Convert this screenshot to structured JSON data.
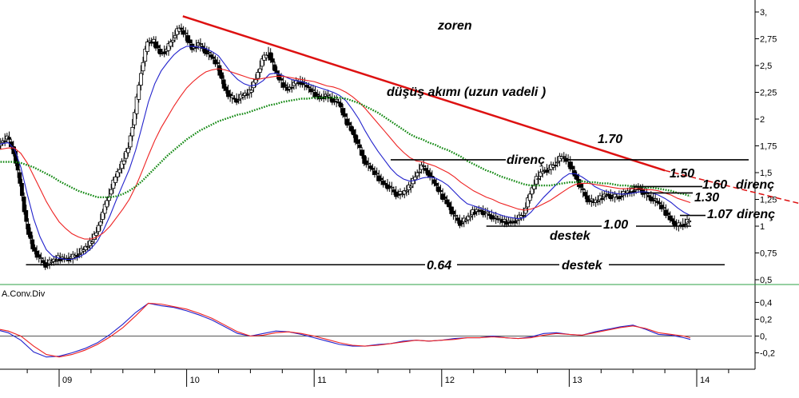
{
  "chart_data": [
    {
      "type": "line",
      "title": "zoren",
      "subtype": "candlestick",
      "x_ticks": [
        "09",
        "10",
        "11",
        "12",
        "13",
        "14"
      ],
      "y_ticks": [
        "3,",
        "2,75",
        "2,5",
        "2,25",
        "2",
        "1,75",
        "1,5",
        "1,25",
        "1",
        "0,75",
        "0,5"
      ],
      "ylim": [
        0.5,
        3.0
      ],
      "grid": false,
      "series": [
        {
          "kind": "close",
          "color": "#000000",
          "x": [
            2008.5,
            2008.55,
            2008.6,
            2008.65,
            2008.7,
            2008.75,
            2008.8,
            2008.85,
            2008.9,
            2008.95,
            2009.0,
            2009.05,
            2009.1,
            2009.15,
            2009.2,
            2009.25,
            2009.3,
            2009.35,
            2009.4,
            2009.45,
            2009.5,
            2009.55,
            2009.6,
            2009.65,
            2009.7,
            2009.75,
            2009.8,
            2009.85,
            2009.9,
            2009.95,
            2010.0,
            2010.05,
            2010.1,
            2010.15,
            2010.2,
            2010.25,
            2010.3,
            2010.35,
            2010.4,
            2010.45,
            2010.5,
            2010.55,
            2010.6,
            2010.65,
            2010.7,
            2010.75,
            2010.8,
            2010.85,
            2010.9,
            2010.95,
            2011.0,
            2011.05,
            2011.1,
            2011.15,
            2011.2,
            2011.25,
            2011.3,
            2011.35,
            2011.4,
            2011.45,
            2011.5,
            2011.55,
            2011.6,
            2011.65,
            2011.7,
            2011.75,
            2011.8,
            2011.85,
            2011.9,
            2011.95,
            2012.0,
            2012.05,
            2012.1,
            2012.15,
            2012.2,
            2012.25,
            2012.3,
            2012.35,
            2012.4,
            2012.45,
            2012.5,
            2012.55,
            2012.6,
            2012.65,
            2012.7,
            2012.75,
            2012.8,
            2012.85,
            2012.9,
            2012.95,
            2013.0,
            2013.05,
            2013.1,
            2013.15,
            2013.2,
            2013.25,
            2013.3,
            2013.35,
            2013.4,
            2013.45,
            2013.5,
            2013.55,
            2013.6,
            2013.65,
            2013.7,
            2013.75,
            2013.8,
            2013.85,
            2013.9,
            2013.95
          ],
          "values": [
            1.7,
            1.78,
            1.83,
            1.7,
            1.4,
            1.02,
            0.8,
            0.7,
            0.64,
            0.67,
            0.7,
            0.7,
            0.7,
            0.74,
            0.78,
            0.84,
            0.95,
            1.12,
            1.3,
            1.46,
            1.58,
            1.74,
            2.05,
            2.45,
            2.72,
            2.72,
            2.62,
            2.64,
            2.76,
            2.85,
            2.78,
            2.66,
            2.7,
            2.64,
            2.58,
            2.5,
            2.3,
            2.2,
            2.18,
            2.22,
            2.25,
            2.38,
            2.55,
            2.62,
            2.45,
            2.34,
            2.28,
            2.33,
            2.35,
            2.3,
            2.25,
            2.2,
            2.22,
            2.18,
            2.15,
            2.0,
            1.9,
            1.76,
            1.61,
            1.54,
            1.47,
            1.4,
            1.36,
            1.3,
            1.3,
            1.36,
            1.47,
            1.56,
            1.5,
            1.4,
            1.3,
            1.22,
            1.1,
            1.03,
            1.06,
            1.13,
            1.15,
            1.12,
            1.09,
            1.06,
            1.04,
            1.04,
            1.06,
            1.12,
            1.3,
            1.44,
            1.52,
            1.53,
            1.59,
            1.65,
            1.6,
            1.48,
            1.35,
            1.25,
            1.22,
            1.26,
            1.3,
            1.27,
            1.28,
            1.31,
            1.33,
            1.36,
            1.3,
            1.26,
            1.22,
            1.15,
            1.07,
            1.0,
            1.02,
            1.05
          ]
        },
        {
          "kind": "fast moving average",
          "color": "#2222cc",
          "values": [
            1.75,
            1.77,
            1.78,
            1.72,
            1.55,
            1.3,
            1.07,
            0.9,
            0.78,
            0.72,
            0.7,
            0.69,
            0.69,
            0.71,
            0.74,
            0.79,
            0.86,
            0.97,
            1.1,
            1.25,
            1.39,
            1.53,
            1.71,
            1.93,
            2.16,
            2.33,
            2.45,
            2.53,
            2.6,
            2.65,
            2.68,
            2.68,
            2.67,
            2.66,
            2.63,
            2.59,
            2.51,
            2.43,
            2.37,
            2.33,
            2.31,
            2.32,
            2.36,
            2.42,
            2.43,
            2.41,
            2.38,
            2.36,
            2.35,
            2.33,
            2.31,
            2.29,
            2.27,
            2.25,
            2.22,
            2.17,
            2.09,
            2.0,
            1.89,
            1.79,
            1.7,
            1.62,
            1.54,
            1.48,
            1.44,
            1.42,
            1.43,
            1.45,
            1.46,
            1.45,
            1.42,
            1.38,
            1.32,
            1.26,
            1.21,
            1.19,
            1.17,
            1.15,
            1.13,
            1.11,
            1.09,
            1.08,
            1.07,
            1.08,
            1.13,
            1.2,
            1.27,
            1.33,
            1.39,
            1.45,
            1.49,
            1.49,
            1.46,
            1.42,
            1.37,
            1.34,
            1.32,
            1.31,
            1.3,
            1.3,
            1.31,
            1.32,
            1.32,
            1.31,
            1.29,
            1.26,
            1.22,
            1.17,
            1.13,
            1.1
          ]
        },
        {
          "kind": "medium moving average",
          "color": "#ee2222",
          "values": [
            1.72,
            1.72,
            1.73,
            1.73,
            1.68,
            1.59,
            1.47,
            1.35,
            1.23,
            1.13,
            1.04,
            0.98,
            0.93,
            0.9,
            0.88,
            0.88,
            0.9,
            0.94,
            1.0,
            1.08,
            1.16,
            1.25,
            1.37,
            1.51,
            1.66,
            1.8,
            1.92,
            2.02,
            2.12,
            2.21,
            2.29,
            2.35,
            2.4,
            2.44,
            2.46,
            2.47,
            2.46,
            2.44,
            2.42,
            2.4,
            2.38,
            2.37,
            2.38,
            2.39,
            2.4,
            2.4,
            2.39,
            2.38,
            2.37,
            2.36,
            2.35,
            2.33,
            2.31,
            2.3,
            2.28,
            2.25,
            2.21,
            2.16,
            2.1,
            2.03,
            1.96,
            1.89,
            1.82,
            1.75,
            1.69,
            1.64,
            1.61,
            1.6,
            1.58,
            1.56,
            1.53,
            1.5,
            1.46,
            1.41,
            1.37,
            1.33,
            1.3,
            1.27,
            1.25,
            1.22,
            1.2,
            1.18,
            1.16,
            1.15,
            1.16,
            1.18,
            1.21,
            1.24,
            1.28,
            1.32,
            1.36,
            1.39,
            1.4,
            1.4,
            1.39,
            1.38,
            1.37,
            1.36,
            1.35,
            1.35,
            1.35,
            1.35,
            1.34,
            1.34,
            1.33,
            1.31,
            1.29,
            1.26,
            1.24,
            1.22
          ]
        },
        {
          "kind": "slow moving average",
          "color": "#118811",
          "values": [
            1.6,
            1.6,
            1.6,
            1.6,
            1.59,
            1.57,
            1.55,
            1.52,
            1.49,
            1.46,
            1.42,
            1.39,
            1.36,
            1.33,
            1.31,
            1.29,
            1.27,
            1.27,
            1.27,
            1.28,
            1.3,
            1.33,
            1.37,
            1.42,
            1.48,
            1.54,
            1.6,
            1.66,
            1.71,
            1.76,
            1.81,
            1.85,
            1.89,
            1.92,
            1.95,
            1.98,
            2.0,
            2.02,
            2.04,
            2.05,
            2.07,
            2.09,
            2.11,
            2.13,
            2.14,
            2.16,
            2.17,
            2.18,
            2.19,
            2.19,
            2.2,
            2.2,
            2.2,
            2.2,
            2.2,
            2.19,
            2.17,
            2.15,
            2.12,
            2.09,
            2.06,
            2.02,
            1.98,
            1.94,
            1.9,
            1.86,
            1.83,
            1.81,
            1.78,
            1.76,
            1.73,
            1.71,
            1.68,
            1.65,
            1.61,
            1.58,
            1.55,
            1.52,
            1.5,
            1.47,
            1.45,
            1.43,
            1.41,
            1.39,
            1.38,
            1.38,
            1.38,
            1.38,
            1.39,
            1.4,
            1.41,
            1.41,
            1.42,
            1.41,
            1.41,
            1.4,
            1.4,
            1.39,
            1.38,
            1.38,
            1.37,
            1.37,
            1.36,
            1.36,
            1.35,
            1.34,
            1.33,
            1.31,
            1.3,
            1.28
          ]
        }
      ],
      "annotations": [
        {
          "text": "düşüş akımı (uzun vadeli )",
          "kind": "trendline",
          "color": "#dd1111",
          "from": [
            2009.97,
            2.96
          ],
          "to": [
            2013.75,
            1.52
          ],
          "extension_to": [
            2014.7,
            1.36
          ]
        },
        {
          "text": "direnç",
          "kind": "horizontal",
          "value": 1.62,
          "from": 2011.6,
          "to": 2014.43
        },
        {
          "text": "1.70",
          "value": 1.7
        },
        {
          "text": "1.50",
          "value": 1.5
        },
        {
          "text": "1.60",
          "value": 1.6
        },
        {
          "text": "direnç",
          "value": 1.6
        },
        {
          "text": "1.30",
          "value": 1.3
        },
        {
          "text": "1.07",
          "value": 1.07
        },
        {
          "text": "direnç",
          "value": 1.07
        },
        {
          "text": "1.00",
          "kind": "horizontal",
          "value": 1.0,
          "from": 2012.35,
          "to": 2013.93
        },
        {
          "text": "destek",
          "value": 1.0
        },
        {
          "text": "0.64",
          "kind": "horizontal",
          "value": 0.64,
          "from": 2008.74,
          "to": 2014.43
        },
        {
          "text": "destek",
          "value": 0.64
        }
      ]
    },
    {
      "type": "line",
      "title": "A.Conv.Div",
      "x_ticks": [
        "09",
        "10",
        "11",
        "12",
        "13",
        "14"
      ],
      "y_ticks": [
        "0,4",
        "0,2",
        "0,",
        "-0,2"
      ],
      "ylim": [
        -0.3,
        0.48
      ],
      "grid": false,
      "zero_line": 0,
      "series": [
        {
          "kind": "macd",
          "color": "#2222cc",
          "x": [
            2008.5,
            2008.6,
            2008.7,
            2008.8,
            2008.9,
            2009.0,
            2009.1,
            2009.2,
            2009.3,
            2009.4,
            2009.5,
            2009.6,
            2009.7,
            2009.8,
            2009.9,
            2010.0,
            2010.1,
            2010.2,
            2010.3,
            2010.4,
            2010.5,
            2010.6,
            2010.7,
            2010.8,
            2010.9,
            2011.0,
            2011.1,
            2011.2,
            2011.3,
            2011.4,
            2011.5,
            2011.6,
            2011.7,
            2011.8,
            2011.9,
            2012.0,
            2012.1,
            2012.2,
            2012.3,
            2012.4,
            2012.5,
            2012.6,
            2012.7,
            2012.8,
            2012.9,
            2013.0,
            2013.1,
            2013.2,
            2013.3,
            2013.4,
            2013.5,
            2013.6,
            2013.7,
            2013.8,
            2013.9,
            2013.95
          ],
          "values": [
            0.08,
            0.04,
            -0.05,
            -0.19,
            -0.25,
            -0.24,
            -0.2,
            -0.15,
            -0.08,
            0.02,
            0.14,
            0.28,
            0.39,
            0.36,
            0.34,
            0.3,
            0.25,
            0.19,
            0.11,
            0.03,
            0.0,
            0.03,
            0.06,
            0.05,
            0.02,
            -0.02,
            -0.06,
            -0.1,
            -0.12,
            -0.12,
            -0.1,
            -0.09,
            -0.06,
            -0.05,
            -0.06,
            -0.05,
            -0.03,
            -0.02,
            -0.02,
            0.0,
            -0.02,
            -0.03,
            -0.01,
            0.03,
            0.04,
            0.02,
            0.01,
            0.05,
            0.08,
            0.11,
            0.13,
            0.08,
            0.02,
            0.01,
            -0.02,
            -0.04
          ]
        },
        {
          "kind": "signal",
          "color": "#ee2222",
          "values": [
            0.09,
            0.06,
            0.0,
            -0.12,
            -0.22,
            -0.25,
            -0.22,
            -0.17,
            -0.1,
            -0.01,
            0.1,
            0.24,
            0.39,
            0.38,
            0.35,
            0.32,
            0.27,
            0.21,
            0.13,
            0.05,
            0.0,
            0.01,
            0.04,
            0.05,
            0.03,
            0.0,
            -0.04,
            -0.08,
            -0.11,
            -0.12,
            -0.11,
            -0.09,
            -0.07,
            -0.05,
            -0.06,
            -0.05,
            -0.04,
            -0.02,
            -0.02,
            -0.01,
            -0.02,
            -0.03,
            -0.02,
            0.01,
            0.03,
            0.02,
            0.01,
            0.04,
            0.07,
            0.1,
            0.12,
            0.09,
            0.04,
            0.02,
            0.0,
            -0.02
          ]
        }
      ]
    }
  ]
}
